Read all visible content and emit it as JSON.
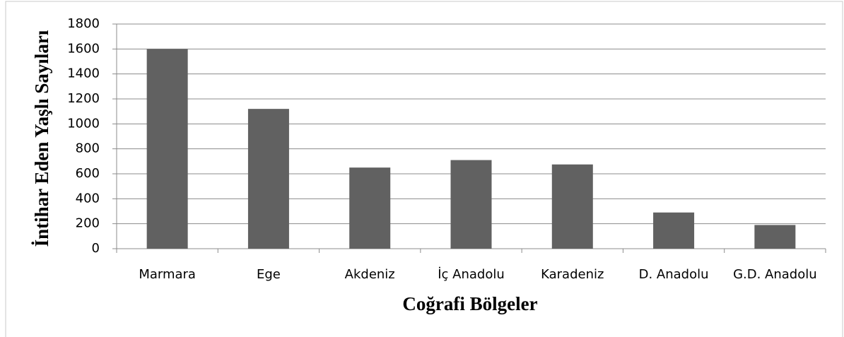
{
  "chart_data": {
    "type": "bar",
    "x_label": "Coğrafi Bölgeler",
    "y_label": "İntihar Eden Yaşlı Sayıları",
    "categories": [
      "Marmara",
      "Ege",
      "Akdeniz",
      "İç Anadolu",
      "Karadeniz",
      "D. Anadolu",
      "G.D. Anadolu"
    ],
    "values": [
      1600,
      1120,
      650,
      710,
      675,
      290,
      190
    ],
    "color": "#616161",
    "ylim": [
      0,
      1800
    ],
    "yticks": [
      0,
      200,
      400,
      600,
      800,
      1000,
      1200,
      1400,
      1600,
      1800
    ],
    "grid": true
  }
}
